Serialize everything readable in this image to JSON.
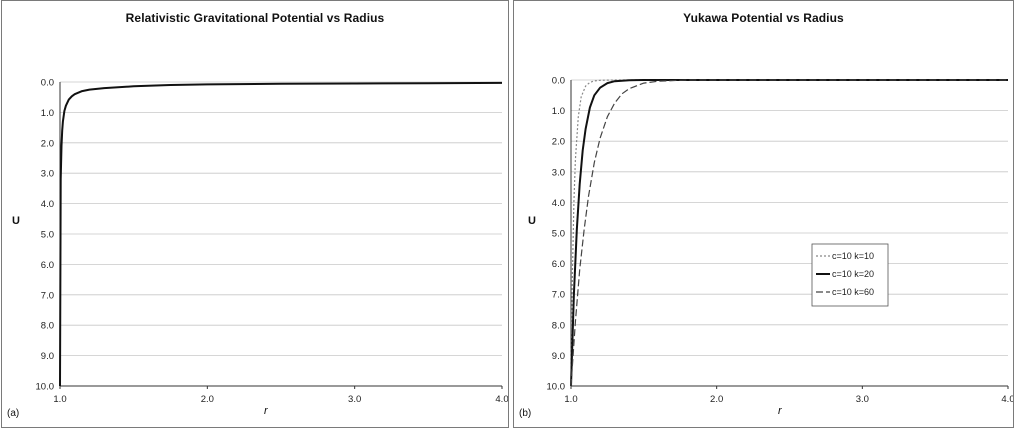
{
  "chart_data": [
    {
      "type": "line",
      "panel_label": "(a)",
      "title": "Relativistic Gravitational Potential vs Radius",
      "xlabel": "r",
      "ylabel": "U",
      "xlim": [
        1.0,
        4.0
      ],
      "ylim": [
        0.0,
        10.0
      ],
      "y_axis_inverted": true,
      "x_ticks": [
        "1.0",
        "2.0",
        "3.0",
        "4.0"
      ],
      "y_ticks": [
        "0.0",
        "1.0",
        "2.0",
        "3.0",
        "4.0",
        "5.0",
        "6.0",
        "7.0",
        "8.0",
        "9.0",
        "10.0"
      ],
      "grid": "horizontal",
      "legend": "none",
      "series": [
        {
          "color": "#111111",
          "x": [
            1.0,
            1.005,
            1.01,
            1.015,
            1.02,
            1.03,
            1.04,
            1.06,
            1.08,
            1.1,
            1.15,
            1.2,
            1.3,
            1.5,
            1.75,
            2.0,
            2.5,
            3.0,
            3.5,
            4.0
          ],
          "y": [
            10.0,
            3.2,
            2.1,
            1.6,
            1.3,
            0.95,
            0.78,
            0.58,
            0.47,
            0.4,
            0.3,
            0.25,
            0.2,
            0.14,
            0.1,
            0.08,
            0.06,
            0.05,
            0.04,
            0.03
          ]
        }
      ]
    },
    {
      "type": "line",
      "panel_label": "(b)",
      "title": "Yukawa Potential vs Radius",
      "xlabel": "r",
      "ylabel": "U",
      "xlim": [
        1.0,
        4.0
      ],
      "ylim": [
        0.0,
        10.0
      ],
      "y_axis_inverted": true,
      "x_ticks": [
        "1.0",
        "2.0",
        "3.0",
        "4.0"
      ],
      "y_ticks": [
        "0.0",
        "1.0",
        "2.0",
        "3.0",
        "4.0",
        "5.0",
        "6.0",
        "7.0",
        "8.0",
        "9.0",
        "10.0"
      ],
      "grid": "horizontal",
      "legend": "right",
      "series": [
        {
          "name": "c=10 k=10",
          "color": "#888888",
          "dash": "2,2",
          "x": [
            1.0,
            1.01,
            1.02,
            1.03,
            1.05,
            1.07,
            1.1,
            1.13,
            1.16,
            1.2,
            1.3,
            1.5,
            2.0,
            3.0,
            4.0
          ],
          "y": [
            10.0,
            6.2,
            4.0,
            2.6,
            1.2,
            0.55,
            0.2,
            0.08,
            0.03,
            0.01,
            0.0,
            0.0,
            0.0,
            0.0,
            0.0
          ]
        },
        {
          "name": "c=10 k=20",
          "color": "#111111",
          "dash": "",
          "x": [
            1.0,
            1.02,
            1.04,
            1.06,
            1.08,
            1.1,
            1.13,
            1.16,
            1.2,
            1.25,
            1.3,
            1.4,
            1.5,
            2.0,
            3.0,
            4.0
          ],
          "y": [
            10.0,
            7.0,
            4.9,
            3.4,
            2.3,
            1.6,
            0.9,
            0.5,
            0.25,
            0.1,
            0.04,
            0.01,
            0.0,
            0.0,
            0.0,
            0.0
          ]
        },
        {
          "name": "c=10 k=60",
          "color": "#444444",
          "dash": "7,3",
          "x": [
            1.0,
            1.03,
            1.06,
            1.09,
            1.12,
            1.16,
            1.2,
            1.25,
            1.3,
            1.35,
            1.4,
            1.5,
            1.6,
            1.8,
            2.0,
            3.0,
            4.0
          ],
          "y": [
            10.0,
            7.9,
            6.2,
            4.9,
            3.8,
            2.7,
            1.9,
            1.2,
            0.75,
            0.45,
            0.28,
            0.1,
            0.04,
            0.0,
            0.0,
            0.0,
            0.0
          ]
        }
      ]
    }
  ]
}
